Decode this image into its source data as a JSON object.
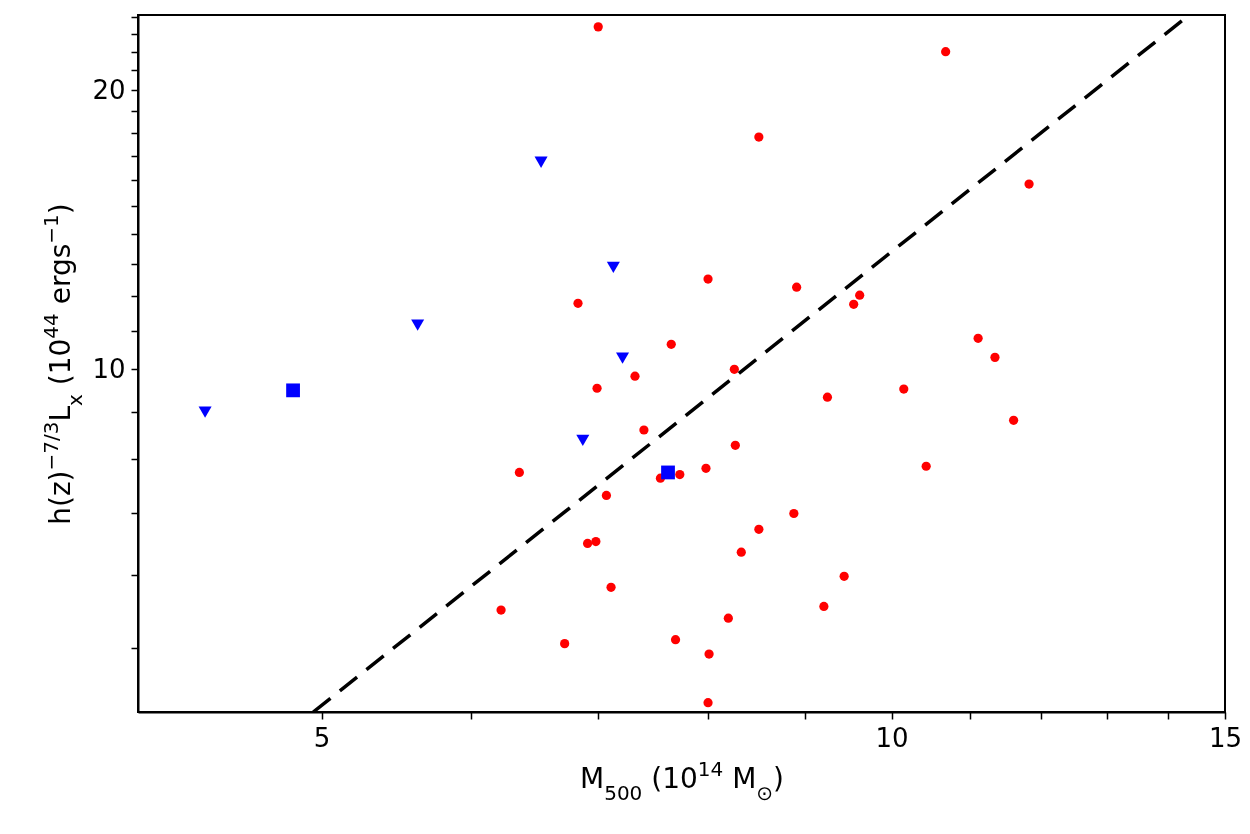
{
  "chart_data": {
    "type": "scatter",
    "xlabel": "M$_{500}$ (10$^{14}$ M$_{⊙}$)",
    "ylabel": "h(z)$^{−7/3}$L$_{x}$ (10$^{44}$ ergs$^{−1}$)",
    "log": "xy",
    "xlim": [
      4,
      15
    ],
    "ylim": [
      4.27,
      24.1
    ],
    "xticks": [
      5,
      {
        "value": 6,
        "label": null
      },
      {
        "value": 7,
        "label": null
      },
      {
        "value": 8,
        "label": null
      },
      {
        "value": 9,
        "label": null
      },
      10,
      {
        "value": 11,
        "label": null
      },
      {
        "value": 12,
        "label": null
      },
      {
        "value": 13,
        "label": null
      },
      {
        "value": 14,
        "label": null
      },
      15
    ],
    "yticks": [
      {
        "value": 5,
        "label": null
      },
      {
        "value": 6,
        "label": null
      },
      {
        "value": 7,
        "label": null
      },
      {
        "value": 8,
        "label": null
      },
      {
        "value": 9,
        "label": null
      },
      10,
      {
        "value": 11,
        "label": null
      },
      {
        "value": 12,
        "label": null
      },
      {
        "value": 13,
        "label": null
      },
      {
        "value": 14,
        "label": null
      },
      {
        "value": 15,
        "label": null
      },
      {
        "value": 16,
        "label": null
      },
      {
        "value": 17,
        "label": null
      },
      {
        "value": 18,
        "label": null
      },
      {
        "value": 19,
        "label": null
      },
      20,
      {
        "value": 21,
        "label": null
      },
      {
        "value": 22,
        "label": null
      },
      {
        "value": 23,
        "label": null
      },
      {
        "value": 24,
        "label": null
      }
    ],
    "series": [
      {
        "marker": "circle",
        "color": "#ff0000",
        "x": [
          7.0,
          10.68,
          8.51,
          11.82,
          8.0,
          6.83,
          8.91,
          9.62,
          9.55,
          7.65,
          8.26,
          11.11,
          11.34,
          7.32,
          6.99,
          9.25,
          10.15,
          11.6,
          7.4,
          8.27,
          6.36,
          7.98,
          7.73,
          7.55,
          7.07,
          10.43,
          8.88,
          8.51,
          6.91,
          6.98,
          8.33,
          9.44,
          7.11,
          6.22,
          9.21,
          8.2,
          7.69,
          6.72,
          8.01,
          8.0
        ],
        "values": [
          23.4,
          22.0,
          17.8,
          15.84,
          12.51,
          11.78,
          12.26,
          12.02,
          11.75,
          10.64,
          10.0,
          10.8,
          10.3,
          9.83,
          9.54,
          9.33,
          9.52,
          8.81,
          8.6,
          8.28,
          7.74,
          7.82,
          7.7,
          7.63,
          7.31,
          7.86,
          6.99,
          6.72,
          6.49,
          6.52,
          6.35,
          5.98,
          5.82,
          5.5,
          5.55,
          5.39,
          5.11,
          5.06,
          4.93,
          4.37
        ]
      },
      {
        "marker": "triangle",
        "color": "#0000ff",
        "x": [
          4.34,
          5.62,
          6.53,
          7.13,
          7.21,
          6.87
        ],
        "values": [
          8.99,
          11.16,
          16.72,
          12.88,
          10.28,
          8.38
        ]
      },
      {
        "marker": "square",
        "color": "#0000ff",
        "x": [
          4.83,
          7.62
        ],
        "values": [
          9.49,
          7.74
        ]
      },
      {
        "type": "line",
        "line_style": "dashed",
        "color": "#000000",
        "x": [
          4.95,
          14.36
        ],
        "values": [
          4.27,
          24.1
        ]
      }
    ]
  }
}
